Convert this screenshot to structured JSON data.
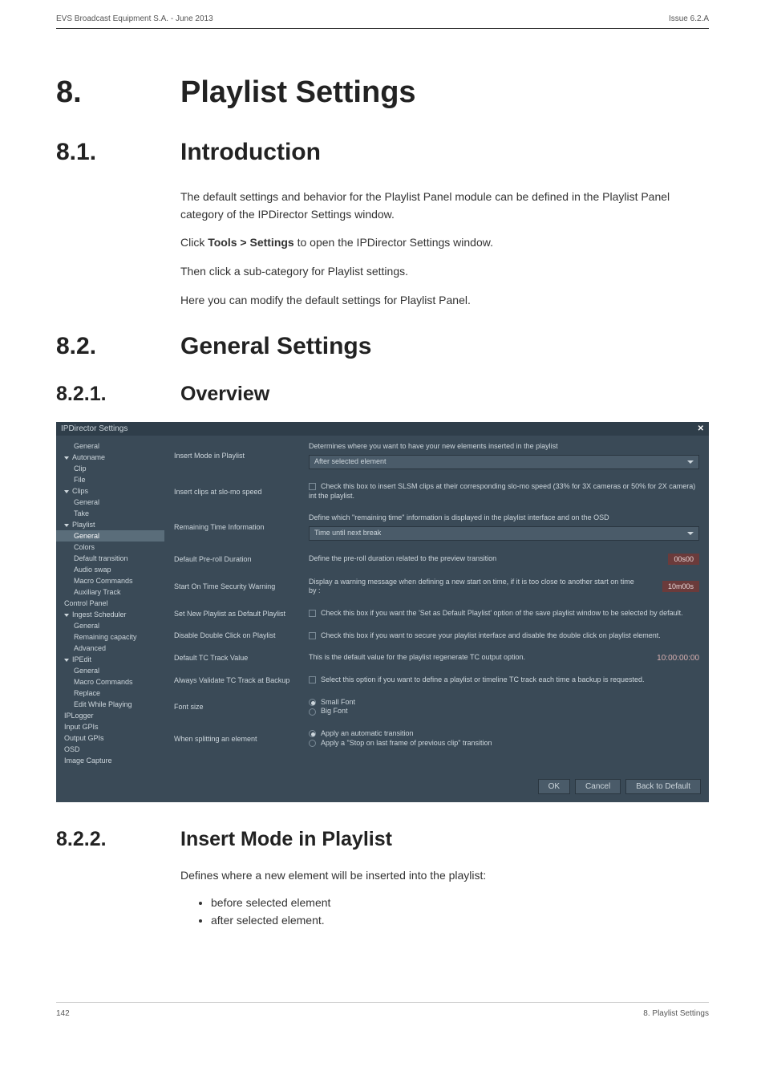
{
  "header": {
    "left": "EVS Broadcast Equipment S.A.  - June 2013",
    "right": "Issue 6.2.A"
  },
  "chapter": {
    "num": "8.",
    "title": "Playlist Settings"
  },
  "sections": {
    "intro": {
      "num": "8.1.",
      "title": "Introduction"
    },
    "general": {
      "num": "8.2.",
      "title": "General Settings"
    },
    "overview": {
      "num": "8.2.1.",
      "title": "Overview"
    },
    "insertmode": {
      "num": "8.2.2.",
      "title": "Insert Mode in Playlist"
    }
  },
  "paras": {
    "p1": "The default settings and behavior for the Playlist Panel module can be defined in the Playlist Panel category of the IPDirector Settings window.",
    "p2a": "Click ",
    "p2b": "Tools > Settings",
    "p2c": " to open the IPDirector Settings window.",
    "p3": "Then click a sub-category for Playlist settings.",
    "p4": "Here you can modify the default settings for Playlist Panel.",
    "p5": "Defines where a new element will be inserted into the playlist:",
    "li1": "before selected element",
    "li2": "after selected element."
  },
  "settings": {
    "window_title": "IPDirector Settings",
    "close": "✕",
    "tree": [
      {
        "label": "General",
        "lvl": 2
      },
      {
        "label": "Autoname",
        "lvl": 1,
        "exp": true
      },
      {
        "label": "Clip",
        "lvl": 2
      },
      {
        "label": "File",
        "lvl": 2
      },
      {
        "label": "Clips",
        "lvl": 1,
        "exp": true
      },
      {
        "label": "General",
        "lvl": 2
      },
      {
        "label": "Take",
        "lvl": 2
      },
      {
        "label": "Playlist",
        "lvl": 1,
        "exp": true
      },
      {
        "label": "General",
        "lvl": 2,
        "selected": true
      },
      {
        "label": "Colors",
        "lvl": 2
      },
      {
        "label": "Default transition",
        "lvl": 2
      },
      {
        "label": "Audio swap",
        "lvl": 2
      },
      {
        "label": "Macro Commands",
        "lvl": 2
      },
      {
        "label": "Auxiliary Track",
        "lvl": 2
      },
      {
        "label": "Control Panel",
        "lvl": 1
      },
      {
        "label": "Ingest Scheduler",
        "lvl": 1,
        "exp": true
      },
      {
        "label": "General",
        "lvl": 2
      },
      {
        "label": "Remaining capacity",
        "lvl": 2
      },
      {
        "label": "Advanced",
        "lvl": 2
      },
      {
        "label": "IPEdit",
        "lvl": 1,
        "exp": true
      },
      {
        "label": "General",
        "lvl": 2
      },
      {
        "label": "Macro Commands",
        "lvl": 2
      },
      {
        "label": "Replace",
        "lvl": 2
      },
      {
        "label": "Edit While Playing",
        "lvl": 2
      },
      {
        "label": "IPLogger",
        "lvl": 1
      },
      {
        "label": "Input GPIs",
        "lvl": 1
      },
      {
        "label": "Output GPIs",
        "lvl": 1
      },
      {
        "label": "OSD",
        "lvl": 1
      },
      {
        "label": "Image Capture",
        "lvl": 1
      }
    ],
    "rows": {
      "insert_label": "Insert Mode in Playlist",
      "insert_desc": "Determines where you want to have your new elements inserted in the playlist",
      "insert_value": "After selected element",
      "slomo_label": "Insert clips at slo-mo speed",
      "slomo_desc": "Check this box to insert SLSM clips at their corresponding slo-mo speed (33% for 3X cameras or 50% for 2X camera) int the playlist.",
      "remain_label": "Remaining Time Information",
      "remain_desc": "Define which \"remaining time\" information is displayed in the playlist interface and on the OSD",
      "remain_value": "Time until next break",
      "preroll_label": "Default Pre-roll Duration",
      "preroll_desc": "Define the pre-roll duration related to the preview transition",
      "preroll_value": "00s00",
      "starton_label": "Start On Time Security Warning",
      "starton_desc": "Display a warning message when defining a new start on time, if it is too close to another start on time by :",
      "starton_value": "10m00s",
      "setnew_label": "Set New Playlist as Default Playlist",
      "setnew_desc": "Check this box if you want the 'Set as Default Playlist' option of the save playlist window to be selected by default.",
      "disable_label": "Disable Double Click on Playlist",
      "disable_desc": "Check this box if you want to secure your playlist interface and disable the double click on playlist element.",
      "tctrack_label": "Default TC Track Value",
      "tctrack_desc": "This is the default value for the playlist regenerate TC output option.",
      "tctrack_value": "10:00:00:00",
      "validate_label": "Always Validate TC Track at Backup",
      "validate_desc": "Select this option if you want to define a playlist or timeline TC track each time a backup is requested.",
      "font_label": "Font size",
      "font_opt1": "Small Font",
      "font_opt2": "Big Font",
      "split_label": "When splitting an element",
      "split_opt1": "Apply an automatic transition",
      "split_opt2": "Apply a \"Stop on last frame of previous clip\" transition"
    },
    "buttons": {
      "ok": "OK",
      "cancel": "Cancel",
      "back": "Back to Default"
    }
  },
  "footer": {
    "page": "142",
    "section": "8. Playlist Settings"
  }
}
